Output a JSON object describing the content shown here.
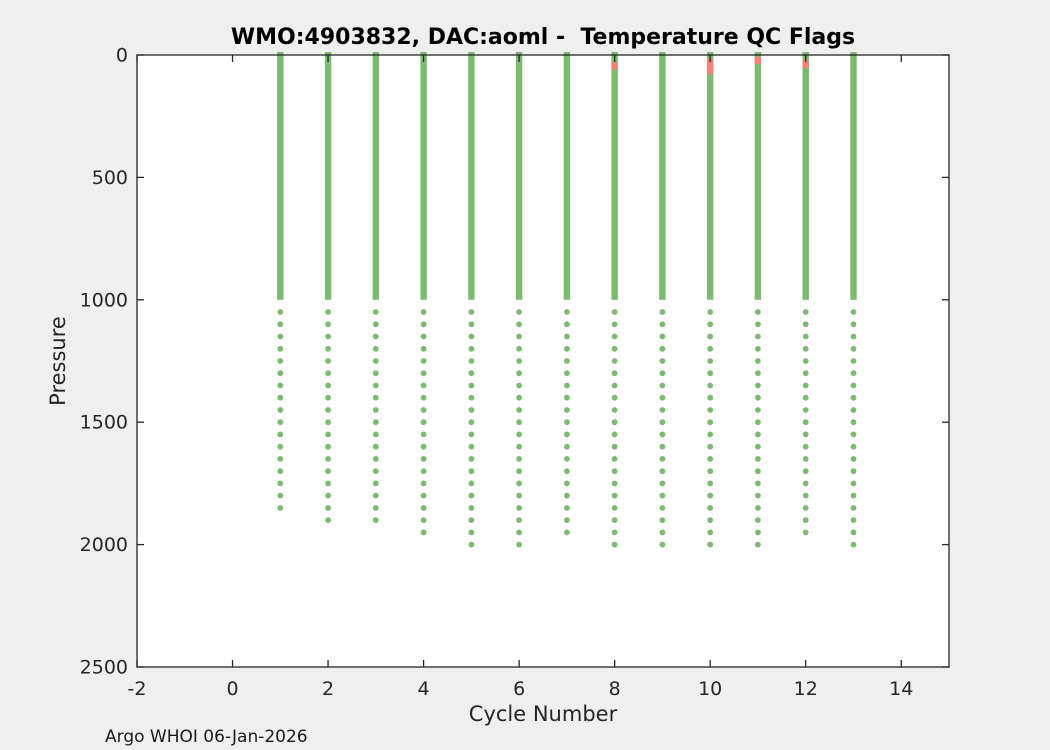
{
  "figure": {
    "background_color": "#efefef",
    "plot_background_color": "#ffffff",
    "axis_color": "#262626"
  },
  "footer": {
    "text": "Argo WHOI 06-Jan-2026"
  },
  "chart_data": {
    "type": "scatter",
    "title": "WMO:4903832, DAC:aoml -  Temperature QC Flags",
    "xlabel": "Cycle Number",
    "ylabel": "Pressure",
    "xlim": [
      -2,
      15
    ],
    "ylim": [
      0,
      2500
    ],
    "y_inverted": true,
    "grid": false,
    "legend": "none",
    "xticks": [
      -2,
      0,
      2,
      4,
      6,
      8,
      10,
      12,
      14
    ],
    "yticks": [
      0,
      500,
      1000,
      1500,
      2000,
      2500
    ],
    "colors": {
      "good": "#7cba71",
      "bad": "#f5827a"
    },
    "marker_notes": "green = good QC flag, red = bad/questionable QC flag; continuous sampling 0-1000 dbar, 50 dbar spacing below 1000 dbar",
    "profiles": [
      {
        "cycle": 1,
        "solid_from": 0,
        "solid_to": 1000,
        "dot_start": 1050,
        "dot_step": 50,
        "max_depth": 1850,
        "bad_ranges": []
      },
      {
        "cycle": 2,
        "solid_from": 0,
        "solid_to": 1000,
        "dot_start": 1050,
        "dot_step": 50,
        "max_depth": 1900,
        "bad_ranges": []
      },
      {
        "cycle": 3,
        "solid_from": 0,
        "solid_to": 1000,
        "dot_start": 1050,
        "dot_step": 50,
        "max_depth": 1900,
        "bad_ranges": []
      },
      {
        "cycle": 4,
        "solid_from": 0,
        "solid_to": 1000,
        "dot_start": 1050,
        "dot_step": 50,
        "max_depth": 1950,
        "bad_ranges": []
      },
      {
        "cycle": 5,
        "solid_from": 0,
        "solid_to": 1000,
        "dot_start": 1050,
        "dot_step": 50,
        "max_depth": 2000,
        "bad_ranges": []
      },
      {
        "cycle": 6,
        "solid_from": 0,
        "solid_to": 1000,
        "dot_start": 1050,
        "dot_step": 50,
        "max_depth": 2000,
        "bad_ranges": []
      },
      {
        "cycle": 7,
        "solid_from": 0,
        "solid_to": 1000,
        "dot_start": 1050,
        "dot_step": 50,
        "max_depth": 1950,
        "bad_ranges": []
      },
      {
        "cycle": 8,
        "solid_from": 0,
        "solid_to": 1000,
        "dot_start": 1050,
        "dot_step": 50,
        "max_depth": 2000,
        "bad_ranges": [
          [
            30,
            60
          ]
        ]
      },
      {
        "cycle": 9,
        "solid_from": 0,
        "solid_to": 1000,
        "dot_start": 1050,
        "dot_step": 50,
        "max_depth": 2000,
        "bad_ranges": []
      },
      {
        "cycle": 10,
        "solid_from": 0,
        "solid_to": 1000,
        "dot_start": 1050,
        "dot_step": 50,
        "max_depth": 2000,
        "bad_ranges": [
          [
            15,
            78
          ]
        ]
      },
      {
        "cycle": 11,
        "solid_from": 0,
        "solid_to": 1000,
        "dot_start": 1050,
        "dot_step": 50,
        "max_depth": 2000,
        "bad_ranges": [
          [
            8,
            37
          ]
        ]
      },
      {
        "cycle": 12,
        "solid_from": 0,
        "solid_to": 1000,
        "dot_start": 1050,
        "dot_step": 50,
        "max_depth": 1950,
        "bad_ranges": [
          [
            20,
            53
          ]
        ]
      },
      {
        "cycle": 13,
        "solid_from": 0,
        "solid_to": 1000,
        "dot_start": 1050,
        "dot_step": 50,
        "max_depth": 2000,
        "bad_ranges": []
      }
    ]
  }
}
